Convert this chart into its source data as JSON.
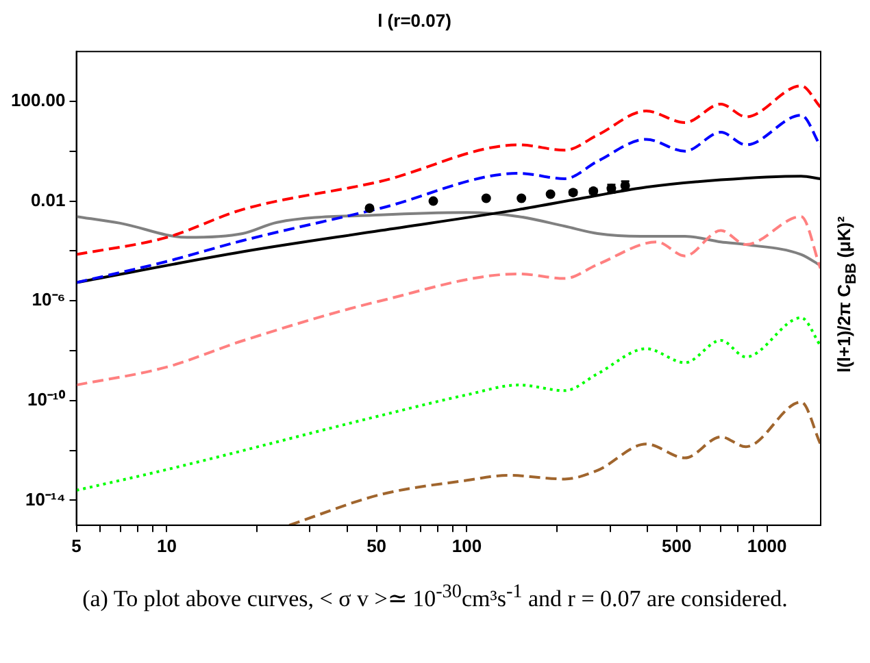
{
  "chart_data": {
    "type": "line",
    "title": "l (r=0.07)",
    "ylabel": "l(l+1)/2π C$_{BB}$ (μK)²",
    "annotations": [
      "(a) To plot above curves, < σ v >≃ 10$^{-30}$cm³s$^{-1}$ and r = 0.07 are considered."
    ],
    "log": "xy",
    "grid": false,
    "legend": false,
    "marker": "none",
    "xlim": [
      5,
      1510
    ],
    "ylim": [
      1e-15,
      10000
    ],
    "xticks": [
      5,
      {
        "value": 6,
        "label": null
      },
      {
        "value": 7,
        "label": null
      },
      {
        "value": 8,
        "label": null
      },
      {
        "value": 9,
        "label": null
      },
      10,
      {
        "value": 20,
        "label": null
      },
      {
        "value": 30,
        "label": null
      },
      {
        "value": 40,
        "label": null
      },
      50,
      {
        "value": 60,
        "label": null
      },
      {
        "value": 70,
        "label": null
      },
      {
        "value": 80,
        "label": null
      },
      {
        "value": 90,
        "label": null
      },
      100,
      {
        "value": 200,
        "label": null
      },
      {
        "value": 300,
        "label": null
      },
      {
        "value": 400,
        "label": null
      },
      500,
      {
        "value": 600,
        "label": null
      },
      {
        "value": 700,
        "label": null
      },
      {
        "value": 800,
        "label": null
      },
      {
        "value": 900,
        "label": null
      },
      1000
    ],
    "yticks": [
      {
        "value": 1e-14,
        "label": "10⁻¹⁴"
      },
      {
        "value": 1e-12,
        "label": null
      },
      {
        "value": 1e-10,
        "label": "10⁻¹⁰"
      },
      {
        "value": 1e-08,
        "label": null
      },
      {
        "value": 1e-06,
        "label": "10⁻⁶"
      },
      {
        "value": 0.0001,
        "label": null
      },
      {
        "value": 0.01,
        "label": "0.01"
      },
      {
        "value": 1,
        "label": null
      },
      {
        "value": 100,
        "label": "100.00"
      }
    ],
    "series": [
      {
        "color": "#ff0000",
        "line_style": "dashed",
        "x": [
          5,
          10,
          17.9,
          51.6,
          149,
          212,
          273,
          396,
          533,
          702,
          851,
          1300,
          1507
        ],
        "values": [
          7.2e-05,
          0.00035,
          0.0046,
          0.062,
          1.8,
          1.1,
          4.5,
          41,
          14,
          78,
          24,
          420,
          59
        ]
      },
      {
        "color": "#0000ff",
        "line_style": "dashed",
        "x": [
          5,
          10,
          17.9,
          51.6,
          149,
          212,
          273,
          396,
          533,
          702,
          851,
          1300,
          1507
        ],
        "values": [
          5.4e-06,
          3.8e-05,
          0.00026,
          0.0052,
          0.13,
          0.079,
          0.4,
          3.0,
          1.0,
          5.8,
          1.8,
          28,
          1.6
        ]
      },
      {
        "color": "#ff8080",
        "line_style": "dashed",
        "x": [
          5,
          10,
          17.9,
          51.6,
          149,
          212,
          273,
          430,
          533,
          702,
          851,
          1300,
          1507
        ],
        "values": [
          4.2e-10,
          2.2e-09,
          2.5e-08,
          1e-06,
          1.2e-05,
          7.9e-06,
          2.9e-05,
          0.00023,
          6.3e-05,
          0.00066,
          0.00018,
          0.0024,
          2e-05
        ]
      },
      {
        "color": "#00ff00",
        "line_style": "dotted",
        "x": [
          5,
          10,
          51.6,
          100,
          149,
          212,
          273,
          396,
          533,
          702,
          851,
          1300,
          1507
        ],
        "values": [
          2.5e-14,
          1.7e-13,
          2.5e-11,
          1.7e-10,
          4.2e-10,
          2.5e-10,
          1.2e-09,
          1.2e-08,
          3.3e-09,
          2.6e-08,
          5.6e-09,
          2.1e-07,
          1.6e-08
        ]
      },
      {
        "color": "#a0652d",
        "line_style": "dashed",
        "x": [
          25.6,
          51.6,
          100,
          137,
          212,
          273,
          396,
          533,
          702,
          851,
          1300,
          1507
        ],
        "values": [
          1e-15,
          1.7e-14,
          6.3e-14,
          1e-13,
          7.1e-14,
          1.6e-13,
          1.8e-12,
          5e-13,
          3.5e-12,
          1.4e-12,
          8.7e-11,
          1.8e-12
        ]
      },
      {
        "color": "#000000",
        "line_style": "solid",
        "x": [
          5,
          17.9,
          51.6,
          149,
          273,
          396,
          702,
          1300,
          1507
        ],
        "values": [
          5.4e-06,
          9.3e-05,
          0.00066,
          0.0046,
          0.017,
          0.036,
          0.071,
          0.1,
          0.079
        ]
      },
      {
        "color": "#808080",
        "line_style": "solid",
        "x": [
          5,
          7,
          11.7,
          17.9,
          23.3,
          51.6,
          100,
          149,
          212,
          273,
          380,
          533,
          702,
          851,
          1300,
          1507
        ],
        "values": [
          0.0024,
          0.0013,
          0.00035,
          0.0005,
          0.0014,
          0.0028,
          0.0035,
          0.0024,
          0.00098,
          0.0005,
          0.00039,
          0.00039,
          0.00023,
          0.00018,
          7.2e-05,
          2.6e-05
        ]
      },
      {
        "type": "scatter",
        "marker": "circle",
        "color": "#000000",
        "x": [
          47.4,
          77.3,
          116,
          152,
          190,
          226,
          264,
          303,
          337
        ],
        "values": [
          0.0052,
          0.01,
          0.013,
          0.013,
          0.019,
          0.022,
          0.025,
          0.032,
          0.042
        ],
        "errors": [
          null,
          null,
          null,
          null,
          null,
          [
            0.018,
            0.027
          ],
          [
            0.02,
            0.031
          ],
          [
            0.022,
            0.045
          ],
          [
            0.028,
            0.062
          ]
        ]
      }
    ]
  }
}
